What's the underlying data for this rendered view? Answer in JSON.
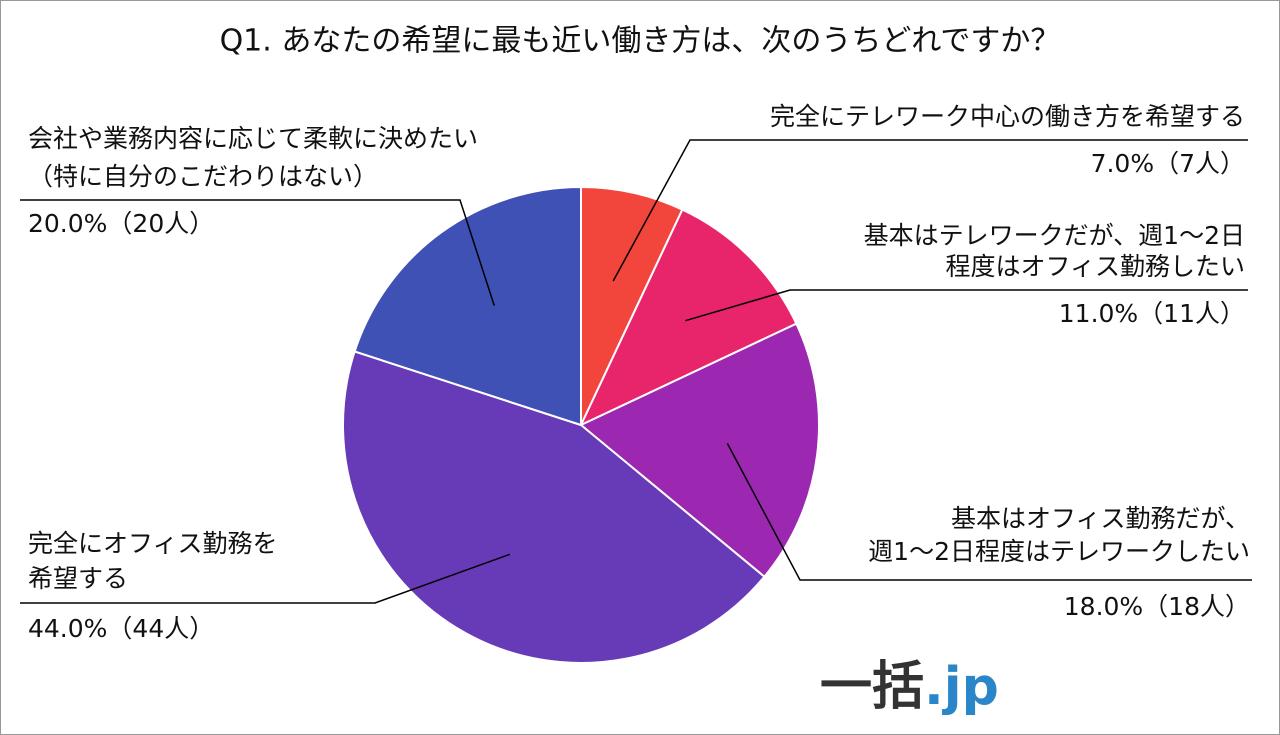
{
  "chart_data": {
    "type": "pie",
    "title": "Q1. あなたの希望に最も近い働き方は、次のうちどれですか？",
    "categories": [
      [
        "完全にテレワーク中心の働き方を希望する"
      ],
      [
        "基本はテレワークだが、週1～2日",
        "程度はオフィス勤務したい"
      ],
      [
        "基本はオフィス勤務だが、",
        "週1～2日程度はテレワークしたい"
      ],
      [
        "完全にオフィス勤務を",
        "希望する"
      ],
      [
        "会社や業務内容に応じて柔軟に決めたい",
        "（特に自分のこだわりはない）"
      ]
    ],
    "values": [
      7,
      11,
      18,
      44,
      20
    ],
    "value_labels": [
      "7.0%（7人）",
      "11.0%（11人）",
      "18.0%（18人）",
      "44.0%（44人）",
      "20.0%（20人）"
    ],
    "colors": [
      "#f2453b",
      "#e8246b",
      "#9c27b0",
      "#673ab7",
      "#3f51b5"
    ],
    "logo": [
      "一括",
      ".jp"
    ]
  }
}
